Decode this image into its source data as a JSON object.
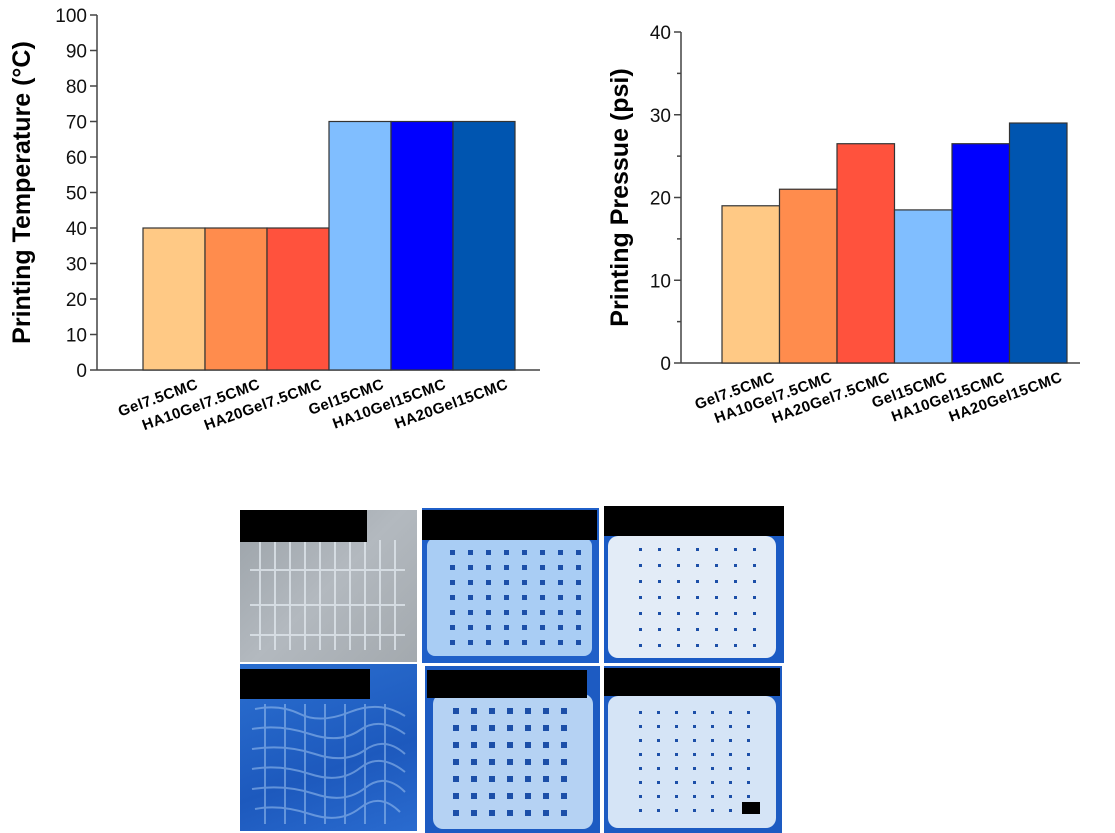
{
  "chart_data": [
    {
      "type": "bar",
      "title": "",
      "xlabel": "",
      "ylabel": "Printing Temperature (°C)",
      "ylim": [
        0,
        100
      ],
      "yticks": [
        0,
        10,
        20,
        30,
        40,
        50,
        60,
        70,
        80,
        90,
        100
      ],
      "categories": [
        "Gel7.5CMC",
        "HA10Gel7.5CMC",
        "HA20Gel7.5CMC",
        "Gel15CMC",
        "HA10Gel15CMC",
        "HA20Gel15CMC"
      ],
      "values": [
        40,
        40,
        40,
        70,
        70,
        70
      ],
      "colors": [
        "#FFC985",
        "#FF8C4D",
        "#FF523D",
        "#80BEFF",
        "#0000FF",
        "#0055B0"
      ],
      "grid": false,
      "legend": "none"
    },
    {
      "type": "bar",
      "title": "",
      "xlabel": "",
      "ylabel": "Printing Pressue (psi)",
      "ylim": [
        0,
        40
      ],
      "yticks": [
        0,
        10,
        20,
        30,
        40
      ],
      "yminor_ticks": [
        5,
        15,
        25,
        35
      ],
      "categories": [
        "Gel7.5CMC",
        "HA10Gel7.5CMC",
        "HA20Gel7.5CMC",
        "Gel15CMC",
        "HA10Gel15CMC",
        "HA20Gel15CMC"
      ],
      "values": [
        19,
        21,
        26.5,
        18.5,
        26.5,
        29
      ],
      "colors": [
        "#FFC985",
        "#FF8C4D",
        "#FF523D",
        "#80BEFF",
        "#0000FF",
        "#0055B0"
      ],
      "grid": false,
      "legend": "none"
    }
  ],
  "photos": {
    "description": "Six photographs of 3D-printed lattice scaffolds in a 2x3 grid with redacted label bars",
    "items": [
      {
        "row": 1,
        "col": 1,
        "background": "gray"
      },
      {
        "row": 1,
        "col": 2,
        "background": "blue"
      },
      {
        "row": 1,
        "col": 3,
        "background": "blue"
      },
      {
        "row": 2,
        "col": 1,
        "background": "blue"
      },
      {
        "row": 2,
        "col": 2,
        "background": "blue"
      },
      {
        "row": 2,
        "col": 3,
        "background": "blue",
        "scale_bar": true
      }
    ]
  }
}
